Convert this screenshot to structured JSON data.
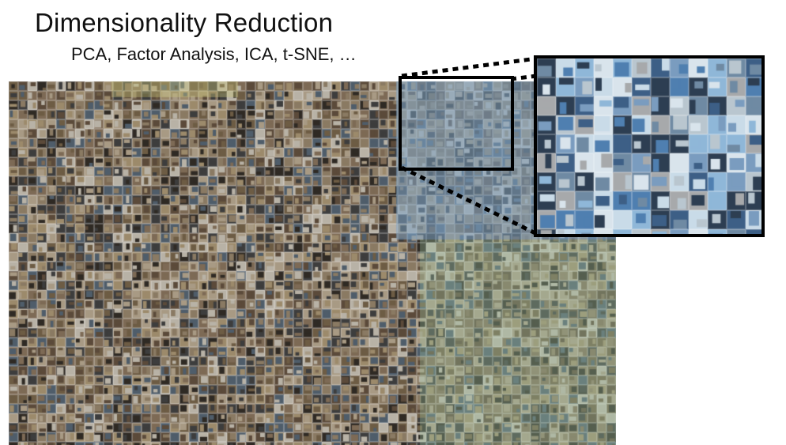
{
  "slide": {
    "title": "Dimensionality Reduction",
    "subtitle": "PCA, Factor Analysis, ICA, t-SNE, …"
  },
  "figure": {
    "mosaic_palette": [
      "#5b4a3a",
      "#8a7a63",
      "#3d3d3d",
      "#a89a84",
      "#6d5c44",
      "#2f2a24",
      "#b8b2a6",
      "#7d6a55",
      "#4f5d6a",
      "#9c8a6b"
    ],
    "zoom_palette": [
      "#4f7fb0",
      "#8fb7d8",
      "#c9dbe8",
      "#3d5f86",
      "#a7a9ab",
      "#6f8aa3",
      "#d9e4ec",
      "#2d3e52",
      "#7a9cbf",
      "#b9c6cf"
    ],
    "frame_color": "#000000"
  }
}
